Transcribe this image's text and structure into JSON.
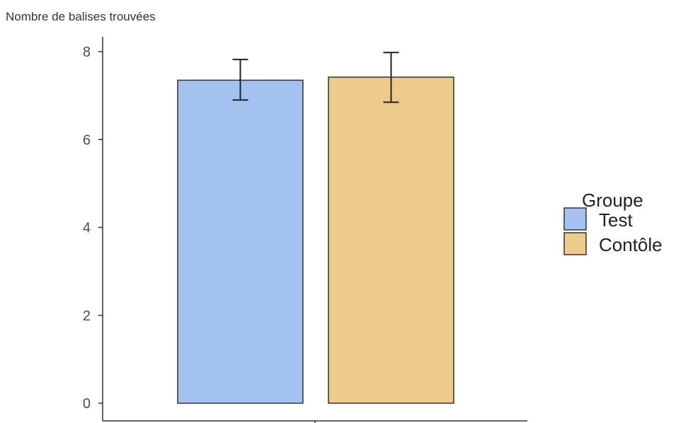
{
  "chart_data": {
    "type": "bar",
    "ylabel": "Nombre de balises trouvées",
    "xlabel": "",
    "ylim": [
      0,
      8.3
    ],
    "yticks": [
      0,
      2,
      4,
      6,
      8
    ],
    "grid": false,
    "legend_position": "right",
    "legend_title": "Groupe",
    "series": [
      {
        "name": "Test",
        "value": 7.35,
        "error_low": 6.9,
        "error_high": 7.82,
        "color": "#a3c2f0"
      },
      {
        "name": "Contôle",
        "value": 7.42,
        "error_low": 6.85,
        "error_high": 7.98,
        "color": "#eeca8b"
      }
    ]
  }
}
